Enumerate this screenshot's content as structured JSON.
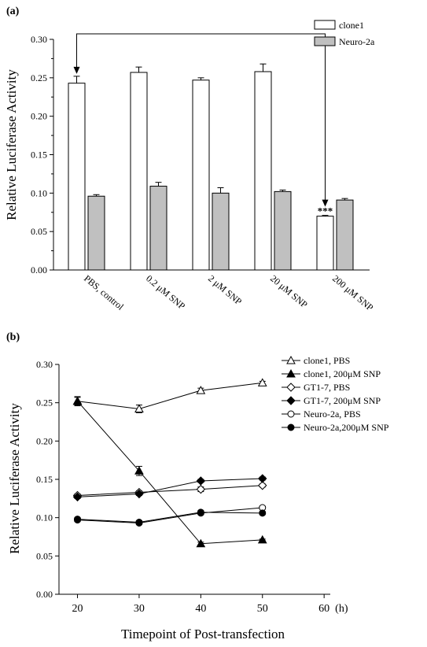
{
  "chart_data": [
    {
      "panel_label": "(a)",
      "type": "bar",
      "categories": [
        "PBS, control",
        "0.2 μM SNP",
        "2 μM SNP",
        "20 μM SNP",
        "200 μM SNP"
      ],
      "series": [
        {
          "name": "clone1",
          "values": [
            0.243,
            0.257,
            0.247,
            0.258,
            0.07
          ],
          "errors": [
            0.009,
            0.007,
            0.003,
            0.01,
            0.001
          ],
          "color": "#ffffff"
        },
        {
          "name": "Neuro-2a",
          "values": [
            0.096,
            0.109,
            0.1,
            0.102,
            0.091
          ],
          "errors": [
            0.002,
            0.005,
            0.007,
            0.002,
            0.002
          ],
          "color": "#c0c0c0"
        }
      ],
      "ylabel": "Relative Luciferase Activity",
      "ylim": [
        0,
        0.3
      ],
      "yticks": [
        "0.00",
        "0.05",
        "0.10",
        "0.15",
        "0.20",
        "0.25",
        "0.30"
      ],
      "annotation": "***",
      "legend_position": "top-right"
    },
    {
      "panel_label": "(b)",
      "type": "line",
      "x": [
        20,
        30,
        40,
        50
      ],
      "xticks": [
        "20",
        "30",
        "40",
        "50",
        "60"
      ],
      "x_unit": "(h)",
      "xlim": [
        17,
        61
      ],
      "series": [
        {
          "name": "clone1, PBS",
          "values": [
            0.252,
            0.242,
            0.266,
            0.276
          ],
          "errors": [
            0.005,
            0.005,
            0.003,
            0.002
          ],
          "marker": "triangle-open"
        },
        {
          "name": "clone1, 200μM SNP",
          "values": [
            0.252,
            0.161,
            0.066,
            0.071
          ],
          "errors": [
            0.006,
            0.006,
            0.002,
            0.001
          ],
          "marker": "triangle-filled"
        },
        {
          "name": "GT1-7, PBS",
          "values": [
            0.129,
            0.133,
            0.137,
            0.142
          ],
          "errors": [
            0.002,
            0.002,
            0.003,
            0.002
          ],
          "marker": "diamond-open"
        },
        {
          "name": "GT1-7, 200μM SNP",
          "values": [
            0.127,
            0.131,
            0.148,
            0.151
          ],
          "errors": [
            0.002,
            0.002,
            0.002,
            0.002
          ],
          "marker": "diamond-filled"
        },
        {
          "name": "Neuro-2a, PBS",
          "values": [
            0.097,
            0.093,
            0.106,
            0.113
          ],
          "errors": [
            0.002,
            0.002,
            0.002,
            0.002
          ],
          "marker": "circle-open"
        },
        {
          "name": "Neuro-2a,200μM SNP",
          "values": [
            0.098,
            0.094,
            0.107,
            0.106
          ],
          "errors": [
            0.002,
            0.002,
            0.002,
            0.002
          ],
          "marker": "circle-filled"
        }
      ],
      "xlabel": "Timepoint of Post-transfection",
      "ylabel": "Relative Luciferase Activity",
      "ylim": [
        0,
        0.3
      ],
      "yticks": [
        "0.00",
        "0.05",
        "0.10",
        "0.15",
        "0.20",
        "0.25",
        "0.30"
      ],
      "legend_position": "top-right"
    }
  ]
}
